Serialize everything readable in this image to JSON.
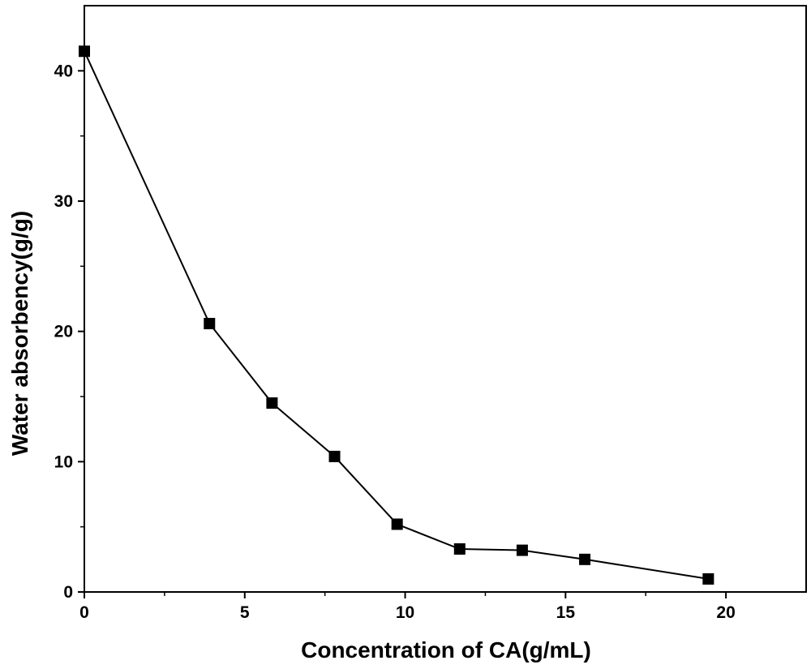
{
  "chart_data": {
    "type": "line",
    "title": "",
    "xlabel": "Concentration of CA(g/mL)",
    "ylabel": "Water absorbency(g/g)",
    "xlim": [
      0,
      22.5
    ],
    "ylim": [
      0,
      45
    ],
    "x_ticks": [
      0,
      5,
      10,
      15,
      20
    ],
    "y_ticks": [
      0,
      10,
      20,
      30,
      40
    ],
    "x_tick_labels": [
      "0",
      "5",
      "10",
      "15",
      "20"
    ],
    "y_tick_labels": [
      "0",
      "10",
      "20",
      "30",
      "40"
    ],
    "grid": false,
    "legend": "none",
    "series": [
      {
        "marker": "square",
        "color": "#000000",
        "x": [
          0,
          3.9,
          5.85,
          7.8,
          9.75,
          11.7,
          13.65,
          15.6,
          19.45
        ],
        "y": [
          41.5,
          20.6,
          14.5,
          10.4,
          5.2,
          3.3,
          3.2,
          2.5,
          1.0
        ]
      }
    ]
  }
}
